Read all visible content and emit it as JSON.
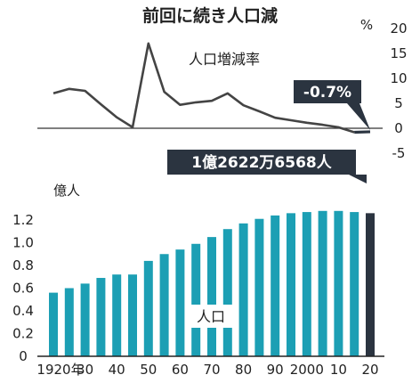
{
  "chart_data": [
    {
      "type": "line",
      "title": "前回に続き人口減",
      "series_label": "人口増減率",
      "unit_label": "%",
      "y_ticks": [
        "20",
        "15",
        "10",
        "5",
        "0",
        "-5"
      ],
      "ylim": [
        -5,
        20
      ],
      "x": [
        1920,
        1925,
        1930,
        1935,
        1940,
        1945,
        1950,
        1955,
        1960,
        1965,
        1970,
        1975,
        1980,
        1985,
        1990,
        1995,
        2000,
        2005,
        2010,
        2015,
        2020
      ],
      "series": [
        {
          "values": [
            7.0,
            7.9,
            7.5,
            4.8,
            2.2,
            0.2,
            17.0,
            7.3,
            4.7,
            5.2,
            5.5,
            7.0,
            4.6,
            3.4,
            2.1,
            1.6,
            1.1,
            0.7,
            0.2,
            -0.8,
            -0.7
          ]
        }
      ],
      "callout": "-0.7%",
      "line_color": "#444444",
      "callout_color": "#2b3440"
    },
    {
      "type": "bar",
      "series_label": "人口",
      "unit_label": "億人",
      "y_ticks": [
        "1.2",
        "1.0",
        "0.8",
        "0.6",
        "0.4",
        "0.2",
        "0"
      ],
      "ylim": [
        0,
        1.3
      ],
      "x_ticks": [
        "1920年",
        "30",
        "40",
        "50",
        "60",
        "70",
        "80",
        "90",
        "2000",
        "10",
        "20"
      ],
      "categories": [
        1920,
        1925,
        1930,
        1935,
        1940,
        1945,
        1950,
        1955,
        1960,
        1965,
        1970,
        1975,
        1980,
        1985,
        1990,
        1995,
        2000,
        2005,
        2010,
        2015,
        2020
      ],
      "values": [
        0.56,
        0.6,
        0.64,
        0.69,
        0.72,
        0.72,
        0.84,
        0.9,
        0.94,
        0.99,
        1.05,
        1.12,
        1.17,
        1.21,
        1.24,
        1.26,
        1.27,
        1.28,
        1.28,
        1.27,
        1.26
      ],
      "callout": "1億2622万6568人",
      "bar_color": "#1c9fb4",
      "highlight_color": "#2b3440"
    }
  ]
}
